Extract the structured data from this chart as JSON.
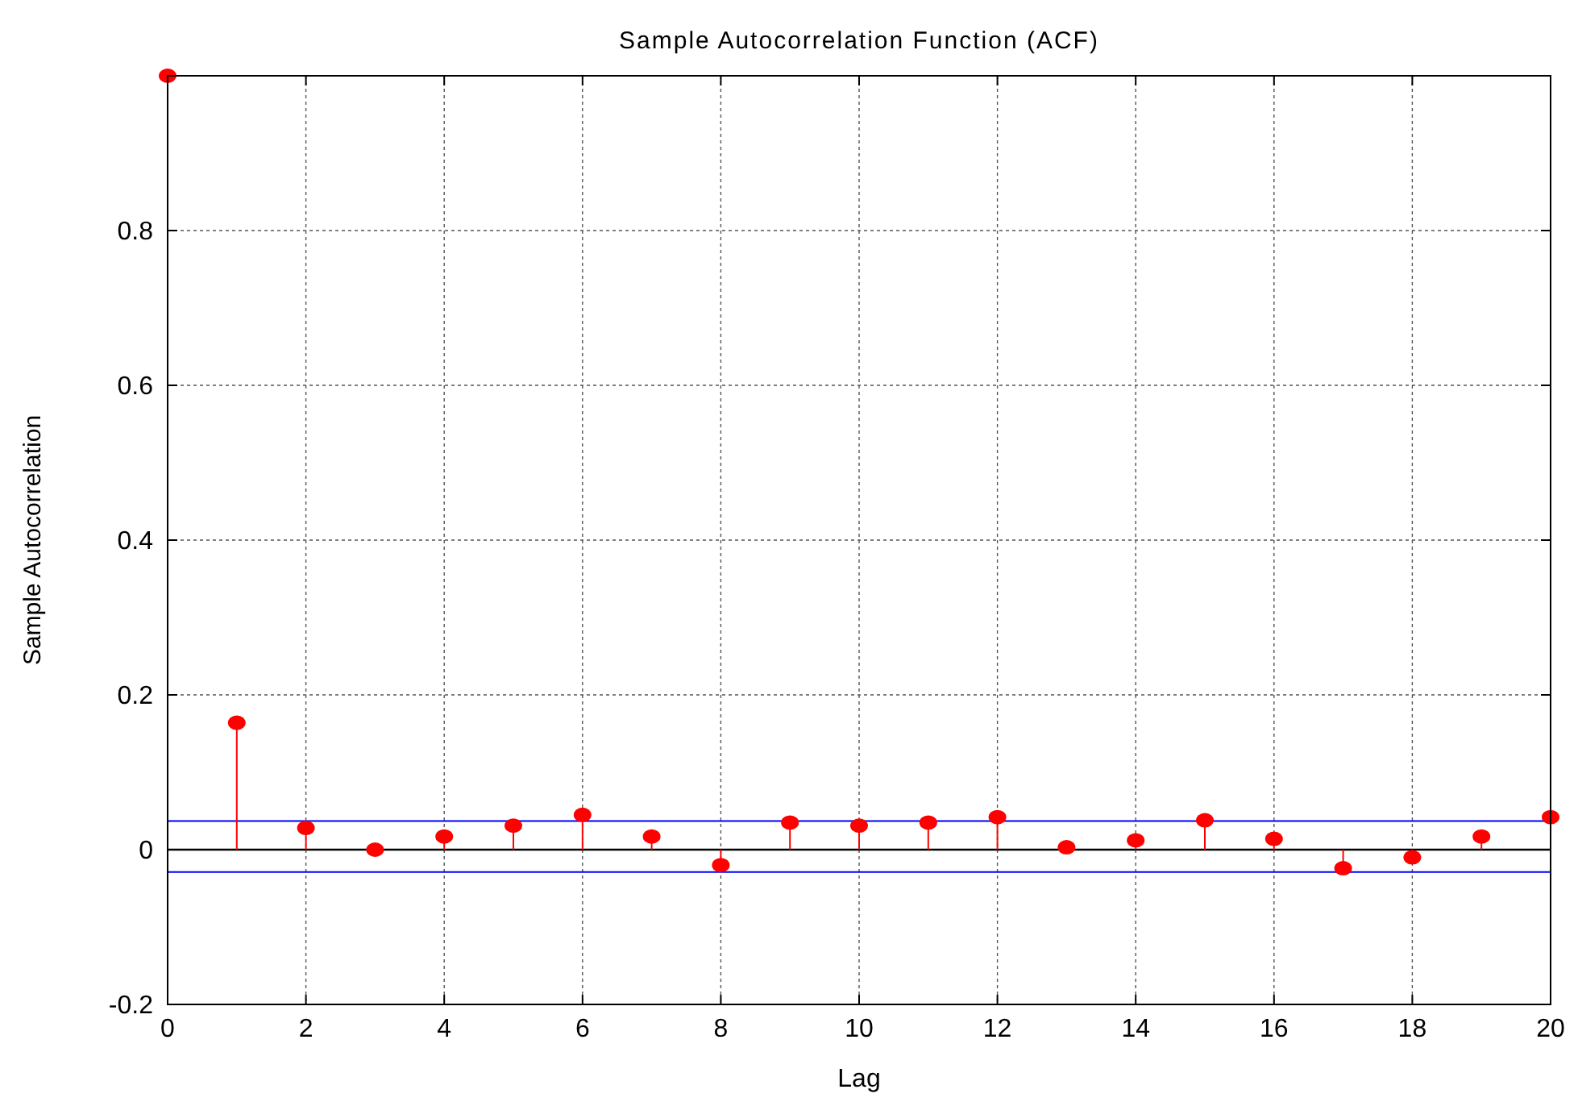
{
  "chart_data": {
    "type": "lollipop",
    "title": "Sample Autocorrelation Function (ACF)",
    "xlabel": "Lag",
    "ylabel": "Sample Autocorrelation",
    "x": [
      0,
      1,
      2,
      3,
      4,
      5,
      6,
      7,
      8,
      9,
      10,
      11,
      12,
      13,
      14,
      15,
      16,
      17,
      18,
      19,
      20
    ],
    "series": [
      {
        "color": "#ff0000",
        "marker": "circle",
        "values": [
          1,
          0.164,
          0.028,
          0,
          0.017,
          0.031,
          0.045,
          0.017,
          -0.02,
          0.035,
          0.031,
          0.035,
          0.042,
          0.003,
          0.012,
          0.038,
          0.014,
          -0.024,
          -0.01,
          0.017,
          0.042
        ]
      }
    ],
    "ref_lines": [
      {
        "axis": "y",
        "value": 0.037,
        "color": "#0000ff"
      },
      {
        "axis": "y",
        "value": -0.029,
        "color": "#0000ff"
      }
    ],
    "xlim": [
      0,
      20
    ],
    "xticks": [
      0,
      2,
      4,
      6,
      8,
      10,
      12,
      14,
      16,
      18,
      20
    ],
    "ylim": [
      -0.2,
      1
    ],
    "yticks": [
      -0.2,
      0,
      0.2,
      0.4,
      0.6,
      0.8
    ],
    "grid": true,
    "line_style": "solid"
  }
}
